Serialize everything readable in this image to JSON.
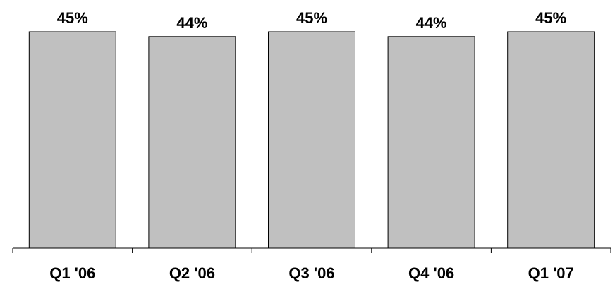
{
  "chart_data": {
    "type": "bar",
    "categories": [
      "Q1 '06",
      "Q2 '06",
      "Q3 '06",
      "Q4 '06",
      "Q1 '07"
    ],
    "values": [
      45,
      44,
      45,
      44,
      45
    ],
    "data_labels": [
      "45%",
      "44%",
      "45%",
      "44%",
      "45%"
    ],
    "title": "",
    "xlabel": "",
    "ylabel": "",
    "ylim": [
      0,
      45
    ],
    "grid": false,
    "legend": "none",
    "colors": {
      "bar_fill": "#c0c0c0",
      "bar_stroke": "#000000"
    }
  }
}
